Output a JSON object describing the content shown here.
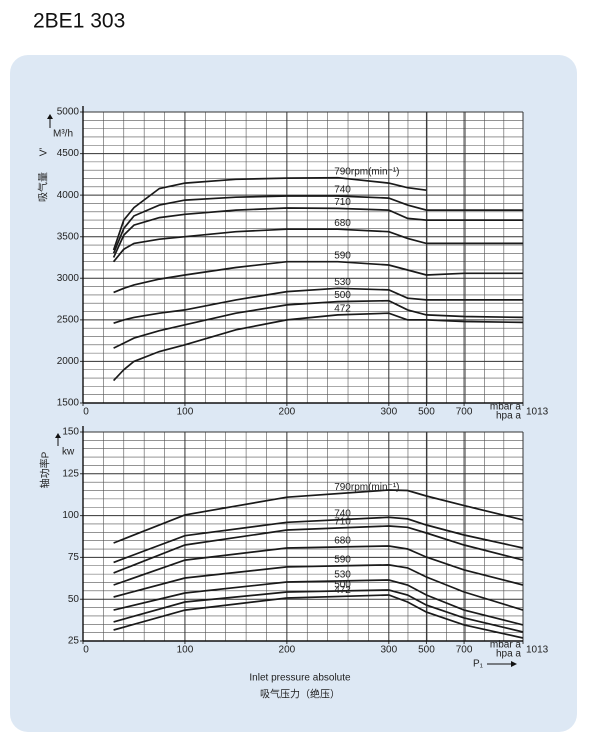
{
  "title": "2BE1 303",
  "chart_data": [
    {
      "type": "line",
      "ylabel": "吸气量",
      "ylabel_symbol": "V'",
      "yunit": "M³/h",
      "xunit": [
        "mbar a",
        "hpa a"
      ],
      "x": [
        30,
        40,
        50,
        75,
        100,
        150,
        200,
        250,
        300,
        400,
        500,
        700,
        1013
      ],
      "xlim": [
        0,
        1013
      ],
      "xticks": [
        0,
        100,
        200,
        300,
        500,
        700,
        1013
      ],
      "ylim": [
        1500,
        5000
      ],
      "yticks": [
        1500,
        2000,
        2500,
        3000,
        3500,
        4000,
        4500,
        5000
      ],
      "grid": true,
      "line_color": "#1a1a1a",
      "series": [
        {
          "name": "790rpm(min⁻¹)",
          "values": [
            3340,
            3700,
            3850,
            4080,
            4145,
            4190,
            4205,
            4210,
            4145,
            4090,
            4060,
            null,
            null
          ]
        },
        {
          "name": "740",
          "values": [
            3300,
            3600,
            3750,
            3880,
            3940,
            3975,
            3990,
            3990,
            3965,
            3880,
            3820,
            3820,
            3820
          ]
        },
        {
          "name": "710",
          "values": [
            3250,
            3520,
            3640,
            3730,
            3770,
            3820,
            3845,
            3840,
            3820,
            3720,
            3700,
            3700,
            3700
          ]
        },
        {
          "name": "680",
          "values": [
            3200,
            3350,
            3420,
            3470,
            3500,
            3560,
            3590,
            3590,
            3560,
            3480,
            3420,
            3420,
            3420
          ]
        },
        {
          "name": "590",
          "values": [
            2830,
            2880,
            2920,
            2990,
            3040,
            3130,
            3200,
            3200,
            3160,
            3100,
            3040,
            3060,
            3060
          ]
        },
        {
          "name": "530",
          "values": [
            2460,
            2500,
            2530,
            2580,
            2620,
            2740,
            2840,
            2880,
            2860,
            2760,
            2740,
            2740,
            2740
          ]
        },
        {
          "name": "500",
          "values": [
            2160,
            2220,
            2280,
            2370,
            2440,
            2580,
            2680,
            2720,
            2730,
            2620,
            2560,
            2540,
            2530
          ]
        },
        {
          "name": "472",
          "values": [
            1770,
            1900,
            2000,
            2120,
            2200,
            2380,
            2500,
            2560,
            2580,
            2500,
            2500,
            2480,
            2470
          ]
        }
      ]
    },
    {
      "type": "line",
      "ylabel": "轴功率P",
      "yunit": "kw",
      "xunit": [
        "mbar a",
        "hpa a"
      ],
      "xlabel": "Inlet pressure absolute",
      "xlabel_cn": "吸气压力（绝压）",
      "xsymbol": "P₁",
      "x": [
        30,
        100,
        200,
        300,
        400,
        500,
        700,
        1013
      ],
      "xlim": [
        0,
        1013
      ],
      "xticks": [
        0,
        100,
        200,
        300,
        500,
        700,
        1013
      ],
      "ylim": [
        25,
        150
      ],
      "yticks": [
        25,
        50,
        75,
        100,
        125,
        150
      ],
      "grid": true,
      "line_color": "#1a1a1a",
      "series": [
        {
          "name": "790rpm(min⁻¹)",
          "values": [
            83.6,
            100.4,
            111,
            115.3,
            115,
            111.7,
            106,
            97.4
          ]
        },
        {
          "name": "740",
          "values": [
            72,
            88,
            96,
            99,
            98,
            94.4,
            88.4,
            80.6
          ]
        },
        {
          "name": "710",
          "values": [
            65.7,
            82.4,
            91.4,
            93.8,
            93,
            89.6,
            82.4,
            73.4
          ]
        },
        {
          "name": "680",
          "values": [
            58.5,
            73.4,
            80.6,
            81.8,
            80,
            75.2,
            67.5,
            58.5
          ]
        },
        {
          "name": "590",
          "values": [
            51.3,
            62.7,
            69.3,
            70.5,
            68.7,
            63.3,
            54.3,
            43.5
          ]
        },
        {
          "name": "530",
          "values": [
            43.5,
            53.7,
            60.3,
            61.5,
            58.5,
            52.5,
            43.5,
            34.6
          ]
        },
        {
          "name": "500",
          "values": [
            36.4,
            48.3,
            54.3,
            55.5,
            52.5,
            46.5,
            38.8,
            30.4
          ]
        },
        {
          "name": "472",
          "values": [
            31.6,
            43.5,
            50.7,
            52.5,
            48.3,
            42.3,
            34.6,
            26.8
          ]
        }
      ]
    }
  ]
}
